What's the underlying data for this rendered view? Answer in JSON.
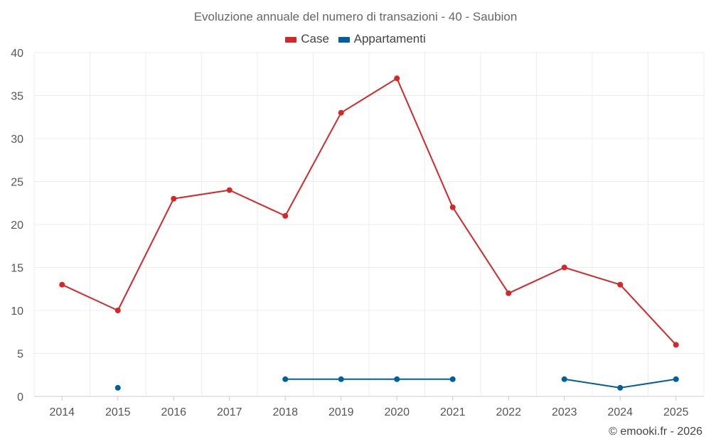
{
  "chart_data": {
    "type": "line",
    "title": "Evoluzione annuale del numero di transazioni - 40 - Saubion",
    "categories": [
      "2014",
      "2015",
      "2016",
      "2017",
      "2018",
      "2019",
      "2020",
      "2021",
      "2022",
      "2023",
      "2024",
      "2025"
    ],
    "series": [
      {
        "name": "Case",
        "color": "#d62728",
        "values": [
          13,
          10,
          23,
          24,
          21,
          33,
          37,
          22,
          12,
          15,
          13,
          6
        ]
      },
      {
        "name": "Appartamenti",
        "color": "#00609c",
        "values": [
          null,
          1,
          null,
          null,
          2,
          2,
          2,
          2,
          null,
          2,
          1,
          2
        ]
      }
    ],
    "ylim": [
      0,
      40
    ],
    "yticks": [
      0,
      5,
      10,
      15,
      20,
      25,
      30,
      35,
      40
    ],
    "xlabel": "",
    "ylabel": "",
    "grid": true,
    "legend_position": "top-center"
  },
  "footer": {
    "copyright": "© emooki.fr - 2026"
  }
}
